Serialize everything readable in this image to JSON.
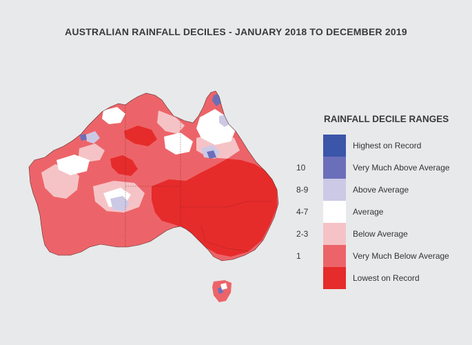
{
  "title": "AUSTRALIAN RAINFALL DECILES - JANUARY 2018 TO DECEMBER 2019",
  "legend": {
    "title": "RAINFALL DECILE RANGES",
    "items": [
      {
        "code": "",
        "label": "Highest on Record",
        "color": "#3b55a8"
      },
      {
        "code": "10",
        "label": "Very Much Above Average",
        "color": "#6b6fba"
      },
      {
        "code": "8-9",
        "label": "Above Average",
        "color": "#ccc9e6"
      },
      {
        "code": "4-7",
        "label": "Average",
        "color": "#ffffff"
      },
      {
        "code": "2-3",
        "label": "Below Average",
        "color": "#f5c3c6"
      },
      {
        "code": "1",
        "label": "Very Much Below Average",
        "color": "#ec6469"
      },
      {
        "code": "",
        "label": "Lowest on Record",
        "color": "#e62b2b"
      }
    ]
  },
  "map": {
    "region": "Australia",
    "colors": {
      "very_much_below": "#ec6469",
      "lowest": "#e62b2b",
      "below": "#f5c3c6",
      "average": "#ffffff",
      "above": "#ccc9e6",
      "very_much_above": "#6b6fba",
      "highest": "#3b55a8",
      "state_border": "#6a2020"
    }
  }
}
